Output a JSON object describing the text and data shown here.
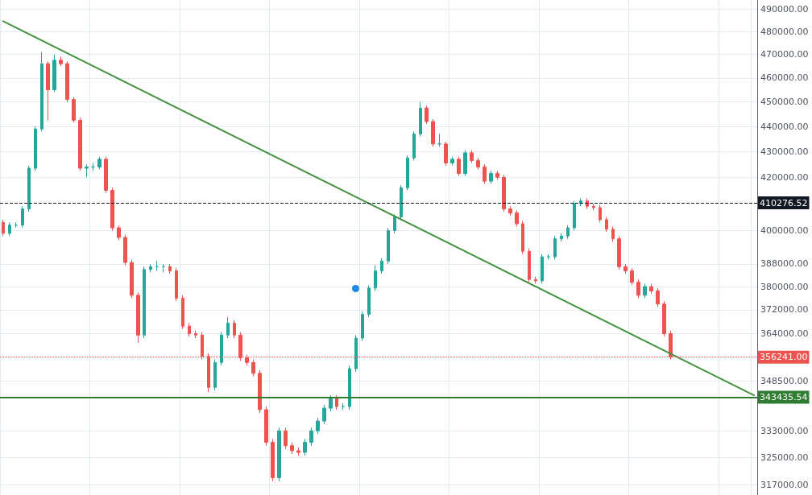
{
  "chart_data": {
    "type": "candlestick",
    "categories": [
      null,
      null,
      null,
      null,
      null,
      null,
      null,
      null,
      null,
      null,
      null,
      null,
      null,
      null,
      null,
      null,
      null,
      null,
      null,
      null,
      null,
      null,
      null,
      null,
      null,
      null,
      null,
      null,
      null,
      null,
      null,
      null,
      null,
      null,
      null,
      null,
      null,
      null,
      null,
      null,
      null,
      null,
      null,
      null,
      null,
      null,
      null,
      null,
      null,
      null,
      null,
      null,
      null,
      null,
      null,
      null,
      null,
      null,
      null,
      null,
      null,
      null,
      null,
      null,
      null,
      null,
      null,
      null,
      null,
      null,
      null,
      null,
      null,
      null,
      null,
      null,
      null,
      null,
      null,
      null,
      null,
      null,
      null,
      null,
      null,
      null,
      null,
      null,
      null,
      null,
      null,
      null,
      null,
      null,
      null,
      null,
      null,
      null,
      null,
      null,
      null,
      null,
      null,
      null,
      null,
      null,
      null,
      null,
      null,
      null,
      null,
      null,
      null,
      null,
      null,
      null,
      null,
      null
    ],
    "series": [
      {
        "ohlc": [
          [
            403000,
            404000,
            398000,
            399000
          ],
          [
            399000,
            403000,
            398000,
            402000
          ],
          [
            402000,
            403000,
            401000,
            402000
          ],
          [
            402000,
            409000,
            401000,
            408000
          ],
          [
            408000,
            424500,
            407000,
            423500
          ],
          [
            423500,
            440000,
            422500,
            439000
          ],
          [
            439000,
            471000,
            438000,
            466000
          ],
          [
            466000,
            467000,
            442500,
            455000
          ],
          [
            455000,
            470000,
            454000,
            467500
          ],
          [
            467500,
            469000,
            465000,
            466000
          ],
          [
            466000,
            467000,
            450000,
            451000
          ],
          [
            451000,
            452000,
            441500,
            442500
          ],
          [
            442500,
            443500,
            422500,
            423500
          ],
          [
            423500,
            425000,
            420000,
            424000
          ],
          [
            424000,
            425500,
            422500,
            424000
          ],
          [
            424000,
            428000,
            423000,
            427000
          ],
          [
            427000,
            428000,
            414000,
            415000
          ],
          [
            415000,
            416000,
            400000,
            401000
          ],
          [
            401000,
            402000,
            396500,
            397500
          ],
          [
            397500,
            398500,
            387500,
            388500
          ],
          [
            388500,
            389500,
            376000,
            377000
          ],
          [
            377000,
            378000,
            361000,
            363500
          ],
          [
            363500,
            387000,
            362500,
            386000
          ],
          [
            386000,
            388000,
            385000,
            387000
          ],
          [
            387000,
            389000,
            385500,
            387000
          ],
          [
            387000,
            388000,
            385000,
            387000
          ],
          [
            387000,
            388000,
            384500,
            385500
          ],
          [
            385500,
            386500,
            375000,
            376000
          ],
          [
            376000,
            377000,
            365500,
            366500
          ],
          [
            366500,
            367500,
            363000,
            364000
          ],
          [
            364000,
            365000,
            362500,
            363500
          ],
          [
            363500,
            364500,
            355500,
            356500
          ],
          [
            356500,
            357500,
            345000,
            346500
          ],
          [
            346500,
            355500,
            345500,
            354500
          ],
          [
            354500,
            364500,
            353500,
            363500
          ],
          [
            363500,
            369500,
            362500,
            367500
          ],
          [
            367500,
            368500,
            362500,
            363500
          ],
          [
            363500,
            364500,
            355000,
            356000
          ],
          [
            356000,
            357000,
            353500,
            354500
          ],
          [
            354500,
            355500,
            350000,
            351000
          ],
          [
            351000,
            352000,
            338500,
            339500
          ],
          [
            339500,
            340500,
            328500,
            329500
          ],
          [
            329500,
            330500,
            318000,
            319000
          ],
          [
            319000,
            334000,
            318000,
            333000
          ],
          [
            333000,
            334000,
            327500,
            328500
          ],
          [
            328500,
            329500,
            326000,
            327000
          ],
          [
            327000,
            328000,
            325500,
            326500
          ],
          [
            326500,
            330500,
            325500,
            329500
          ],
          [
            329500,
            334000,
            328500,
            333000
          ],
          [
            333000,
            337000,
            332000,
            336000
          ],
          [
            336000,
            341000,
            335000,
            340000
          ],
          [
            340000,
            344000,
            339000,
            343000
          ],
          [
            343000,
            344000,
            339500,
            340500
          ],
          [
            340500,
            341500,
            339500,
            340500
          ],
          [
            340500,
            353500,
            339500,
            352500
          ],
          [
            352500,
            363500,
            351500,
            362500
          ],
          [
            362500,
            371500,
            361500,
            370500
          ],
          [
            370500,
            380500,
            369500,
            379500
          ],
          [
            379500,
            387500,
            378500,
            385500
          ],
          [
            385500,
            390000,
            384500,
            389000
          ],
          [
            389000,
            401000,
            388000,
            400000
          ],
          [
            400000,
            406000,
            399000,
            405000
          ],
          [
            405000,
            417000,
            404000,
            416000
          ],
          [
            416000,
            428500,
            415000,
            427500
          ],
          [
            427500,
            438000,
            426500,
            437000
          ],
          [
            437000,
            450000,
            436000,
            447500
          ],
          [
            447500,
            448500,
            441000,
            442000
          ],
          [
            442000,
            443000,
            432000,
            433000
          ],
          [
            433000,
            437000,
            432000,
            433000
          ],
          [
            433000,
            434000,
            424500,
            425500
          ],
          [
            425500,
            428000,
            424500,
            427000
          ],
          [
            427000,
            428000,
            420500,
            421500
          ],
          [
            421500,
            430500,
            420500,
            429500
          ],
          [
            429500,
            430500,
            425500,
            426500
          ],
          [
            426500,
            427500,
            423000,
            424000
          ],
          [
            424000,
            425000,
            417500,
            418500
          ],
          [
            418500,
            422500,
            417500,
            421500
          ],
          [
            421500,
            422500,
            419000,
            420000
          ],
          [
            420000,
            421000,
            407000,
            408000
          ],
          [
            408000,
            409000,
            405500,
            406500
          ],
          [
            406500,
            407500,
            401500,
            402500
          ],
          [
            402500,
            403500,
            391500,
            392500
          ],
          [
            392500,
            393500,
            381500,
            382500
          ],
          [
            382500,
            383500,
            381000,
            382000
          ],
          [
            382000,
            391500,
            381000,
            390500
          ],
          [
            390500,
            391500,
            389500,
            390500
          ],
          [
            390500,
            398000,
            389500,
            397000
          ],
          [
            397000,
            399000,
            396000,
            398000
          ],
          [
            398000,
            402000,
            397000,
            401000
          ],
          [
            401000,
            411000,
            400000,
            410000
          ],
          [
            410000,
            412000,
            409000,
            411000
          ],
          [
            411000,
            412000,
            408000,
            409000
          ],
          [
            409000,
            410000,
            407500,
            408500
          ],
          [
            408500,
            409500,
            403000,
            404000
          ],
          [
            404000,
            405000,
            399500,
            400500
          ],
          [
            400500,
            401500,
            396000,
            397000
          ],
          [
            397000,
            398000,
            386000,
            387000
          ],
          [
            387000,
            388000,
            384500,
            385500
          ],
          [
            385500,
            386500,
            380500,
            381500
          ],
          [
            381500,
            382500,
            376000,
            377000
          ],
          [
            377000,
            381000,
            376000,
            380000
          ],
          [
            380000,
            381000,
            377500,
            378500
          ],
          [
            378500,
            379500,
            373000,
            374000
          ],
          [
            374000,
            375000,
            363000,
            364000
          ],
          [
            364000,
            365000,
            355500,
            356241
          ],
          null,
          null,
          null,
          null,
          null,
          null,
          null,
          null,
          null,
          null,
          null,
          null,
          null
        ],
        "colors": [
          "#ef5350",
          "#26a69a",
          "#26a69a",
          "#26a69a",
          "#26a69a",
          "#26a69a",
          "#26a69a",
          "#ef5350",
          "#26a69a",
          "#ef5350",
          "#ef5350",
          "#ef5350",
          "#ef5350",
          "#26a69a",
          "#26a69a",
          "#26a69a",
          "#ef5350",
          "#ef5350",
          "#ef5350",
          "#ef5350",
          "#ef5350",
          "#ef5350",
          "#26a69a",
          "#26a69a",
          "#26a69a",
          "#26a69a",
          "#ef5350",
          "#ef5350",
          "#ef5350",
          "#ef5350",
          "#ef5350",
          "#ef5350",
          "#ef5350",
          "#26a69a",
          "#26a69a",
          "#26a69a",
          "#ef5350",
          "#ef5350",
          "#ef5350",
          "#ef5350",
          "#ef5350",
          "#ef5350",
          "#ef5350",
          "#26a69a",
          "#ef5350",
          "#ef5350",
          "#ef5350",
          "#26a69a",
          "#26a69a",
          "#26a69a",
          "#26a69a",
          "#26a69a",
          "#ef5350",
          "#26a69a",
          "#26a69a",
          "#26a69a",
          "#26a69a",
          "#26a69a",
          "#26a69a",
          "#26a69a",
          "#26a69a",
          "#26a69a",
          "#26a69a",
          "#26a69a",
          "#26a69a",
          "#26a69a",
          "#ef5350",
          "#ef5350",
          "#26a69a",
          "#ef5350",
          "#26a69a",
          "#ef5350",
          "#26a69a",
          "#ef5350",
          "#ef5350",
          "#ef5350",
          "#26a69a",
          "#ef5350",
          "#ef5350",
          "#ef5350",
          "#ef5350",
          "#ef5350",
          "#ef5350",
          "#ef5350",
          "#26a69a",
          "#26a69a",
          "#26a69a",
          "#26a69a",
          "#26a69a",
          "#26a69a",
          "#26a69a",
          "#ef5350",
          "#ef5350",
          "#ef5350",
          "#ef5350",
          "#ef5350",
          "#ef5350",
          "#ef5350",
          "#ef5350",
          "#ef5350",
          "#26a69a",
          "#ef5350",
          "#ef5350",
          "#ef5350",
          "#ef5350",
          null,
          null,
          null,
          null,
          null,
          null,
          null,
          null,
          null,
          null,
          null,
          null,
          null
        ]
      },
      {
        "type": "line",
        "color": "#43923f",
        "values": [
          484500,
          null,
          null,
          null,
          null,
          null,
          null,
          null,
          null,
          null,
          null,
          null,
          null,
          null,
          null,
          null,
          null,
          null,
          null,
          null,
          null,
          null,
          null,
          null,
          null,
          null,
          null,
          null,
          null,
          null,
          null,
          null,
          null,
          null,
          null,
          null,
          null,
          null,
          null,
          null,
          null,
          null,
          null,
          null,
          null,
          null,
          null,
          null,
          null,
          null,
          null,
          null,
          null,
          null,
          null,
          null,
          null,
          null,
          null,
          null,
          null,
          null,
          null,
          null,
          null,
          null,
          null,
          null,
          null,
          null,
          null,
          null,
          null,
          null,
          null,
          null,
          null,
          null,
          null,
          null,
          null,
          null,
          null,
          null,
          null,
          null,
          null,
          null,
          null,
          null,
          null,
          null,
          null,
          null,
          null,
          null,
          null,
          null,
          null,
          null,
          null,
          null,
          null,
          null,
          null,
          null,
          null,
          null,
          null,
          null,
          null,
          null,
          null,
          null,
          null,
          null,
          null,
          344000
        ]
      }
    ],
    "ylim": [
      314000,
      494000
    ],
    "log": true,
    "yticks": [
      {
        "value": 490000,
        "label": "490000.00"
      },
      {
        "value": 480000,
        "label": "480000.00"
      },
      {
        "value": 470000,
        "label": "470000.00"
      },
      {
        "value": 460000,
        "label": "460000.00"
      },
      {
        "value": 450000,
        "label": "450000.00"
      },
      {
        "value": 440000,
        "label": "440000.00"
      },
      {
        "value": 430000,
        "label": "430000.00"
      },
      {
        "value": 420000,
        "label": "420000.00"
      },
      {
        "value": 400000,
        "label": "400000.00"
      },
      {
        "value": 388000,
        "label": "388000.00"
      },
      {
        "value": 380000,
        "label": "380000.00"
      },
      {
        "value": 372000,
        "label": "372000.00"
      },
      {
        "value": 364000,
        "label": "364000.00"
      },
      {
        "value": 348500,
        "label": "348500.00"
      },
      {
        "value": 333000,
        "label": "333000.00"
      },
      {
        "value": 325000,
        "label": "325000.00"
      },
      {
        "value": 317000,
        "label": "317000.00"
      }
    ],
    "ref_lines": [
      {
        "axis": "y",
        "value": 410276.52,
        "label": "410276.52",
        "color": "#131722",
        "line_style": "dashed"
      },
      {
        "axis": "y",
        "value": 356241,
        "label": "356241.00",
        "color": "#ef5350",
        "line_style": "dotted"
      },
      {
        "axis": "y",
        "value": 343435.54,
        "label": "343435.54",
        "color": "#2e7d32",
        "line_style": "solid"
      }
    ],
    "grid": true,
    "line_style": "solid",
    "tick_labels": "y"
  }
}
